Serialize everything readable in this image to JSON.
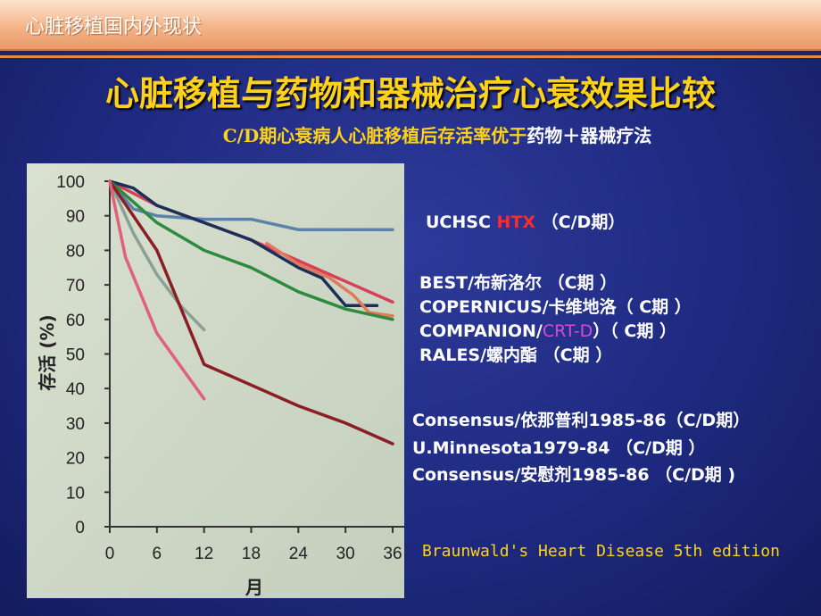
{
  "header": {
    "title": "心脏移植国内外现状"
  },
  "main_title": "心脏移植与药物和器械治疗心衰效果比较",
  "subtitle": {
    "part1": "C/D期心衰病人心脏移植后存活率优于",
    "part2": "药物＋器械疗法"
  },
  "legend": {
    "g1_a": "UCHSC ",
    "g1_b": "HTX",
    "g1_c": " （C/D期）",
    "g2_l1": "BEST/布新洛尔 （C期 ）",
    "g2_l2": "COPERNICUS/卡维地洛（ C期 ）",
    "g2_l3_a": "COMPANION/",
    "g2_l3_b": "CRT-D",
    "g2_l3_c": "）（ C期 ）",
    "g2_l4": "RALES/螺内酯 （C期 ）",
    "g3_l1": "Consensus/依那普利1985-86（C/D期）",
    "g3_l2": "U.Minnesota1979-84 （C/D期 ）",
    "g3_l3": "Consensus/安慰剂1985-86 （C/D期 )"
  },
  "source": "Braunwald's Heart Disease 5th edition",
  "colors": {
    "background": "#1e2a80",
    "title": "#ffd21a",
    "chart_paper": "#d2dbc8"
  },
  "chart_data": {
    "type": "line",
    "xlabel": "月",
    "ylabel": "存活 (%)",
    "xlim": [
      0,
      36
    ],
    "ylim": [
      0,
      100
    ],
    "x_ticks": [
      "0",
      "6",
      "12",
      "18",
      "24",
      "30",
      "36"
    ],
    "y_ticks": [
      "0",
      "10",
      "20",
      "30",
      "40",
      "50",
      "60",
      "70",
      "80",
      "90",
      "100"
    ],
    "series": [
      {
        "color": "#5b83a8",
        "points": [
          [
            0,
            100
          ],
          [
            3,
            92
          ],
          [
            6,
            90
          ],
          [
            12,
            89
          ],
          [
            18,
            89
          ],
          [
            24,
            86
          ],
          [
            30,
            86
          ],
          [
            36,
            86
          ]
        ]
      },
      {
        "color": "#d8405a",
        "points": [
          [
            0,
            100
          ],
          [
            6,
            93
          ],
          [
            12,
            88
          ],
          [
            18,
            83
          ],
          [
            24,
            77
          ],
          [
            30,
            71
          ],
          [
            36,
            65
          ]
        ]
      },
      {
        "color": "#1a2f5a",
        "points": [
          [
            0,
            100
          ],
          [
            3,
            98
          ],
          [
            6,
            93
          ],
          [
            12,
            88
          ],
          [
            18,
            83
          ],
          [
            24,
            75
          ],
          [
            27,
            72
          ],
          [
            30,
            64
          ],
          [
            34,
            64
          ]
        ]
      },
      {
        "color": "#e07a5a",
        "points": [
          [
            20,
            82
          ],
          [
            24,
            76
          ],
          [
            28,
            72
          ],
          [
            31,
            67
          ],
          [
            33,
            62
          ],
          [
            36,
            61
          ]
        ]
      },
      {
        "color": "#2e8a3e",
        "points": [
          [
            0,
            100
          ],
          [
            6,
            88
          ],
          [
            12,
            80
          ],
          [
            18,
            75
          ],
          [
            24,
            68
          ],
          [
            30,
            63
          ],
          [
            36,
            60
          ]
        ]
      },
      {
        "color": "#8aa096",
        "points": [
          [
            0,
            100
          ],
          [
            3,
            85
          ],
          [
            6,
            73
          ],
          [
            9,
            64
          ],
          [
            12,
            57
          ]
        ]
      },
      {
        "color": "#8b1e24",
        "points": [
          [
            0,
            100
          ],
          [
            6,
            80
          ],
          [
            12,
            47
          ],
          [
            18,
            41
          ],
          [
            24,
            35
          ],
          [
            30,
            30
          ],
          [
            36,
            24
          ]
        ]
      },
      {
        "color": "#e0607e",
        "points": [
          [
            0,
            100
          ],
          [
            2,
            78
          ],
          [
            6,
            56
          ],
          [
            12,
            37
          ]
        ]
      }
    ]
  }
}
